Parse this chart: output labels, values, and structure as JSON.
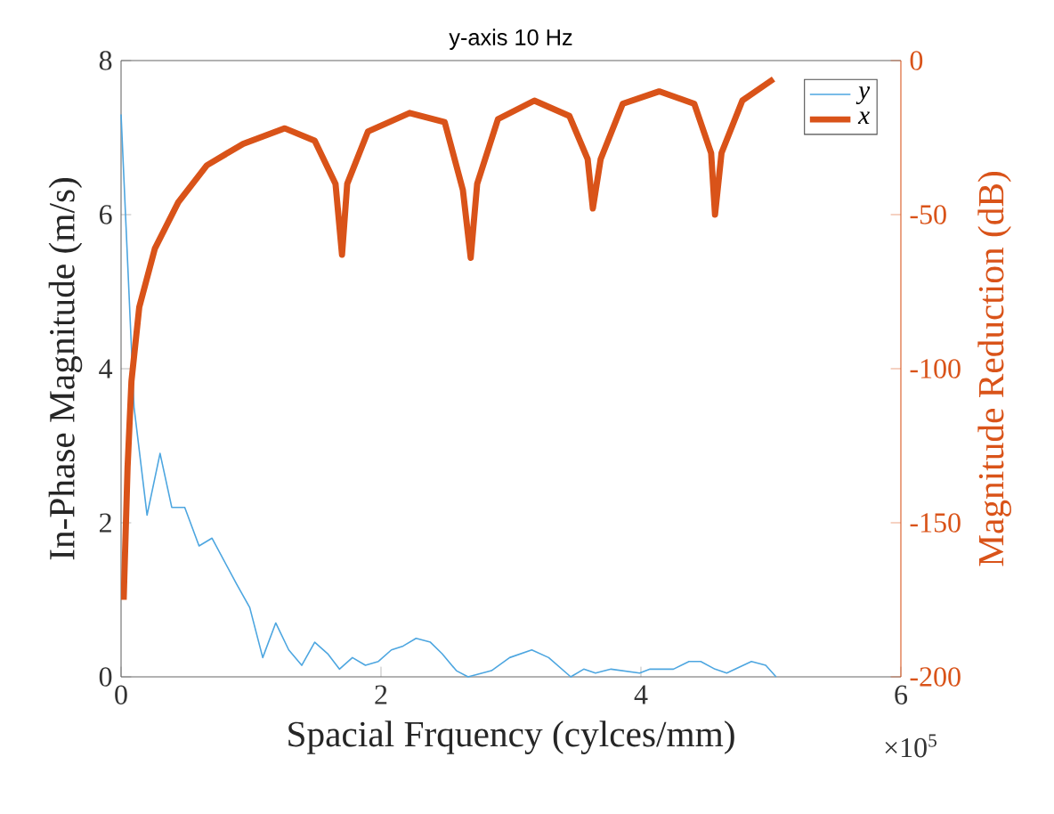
{
  "chart_data": {
    "type": "line",
    "title": "y-axis 10 Hz",
    "xlabel": "Spacial Frquency (cylces/mm)",
    "ylabel": "In-Phase Magnitude (m/s)",
    "y2label": "Magnitude Reduction (dB)",
    "annotations": [
      "×10$^{5}$"
    ],
    "xlim": [
      0,
      6
    ],
    "xticks": [
      0,
      2,
      4,
      6
    ],
    "ylim": [
      0,
      8
    ],
    "yticks": [
      0,
      2,
      4,
      6,
      8
    ],
    "y2lim": [
      -200,
      0
    ],
    "y2ticks": [
      -200,
      -150,
      -100,
      -50,
      0
    ],
    "legend": "top right",
    "series": [
      {
        "name": "y",
        "color": "#4da6e0",
        "x": [
          0,
          0.1,
          0.2,
          0.3,
          0.39,
          0.49,
          0.6,
          0.7,
          0.89,
          0.99,
          1.09,
          1.19,
          1.29,
          1.39,
          1.49,
          1.59,
          1.68,
          1.78,
          1.88,
          1.98,
          2.08,
          2.17,
          2.27,
          2.38,
          2.47,
          2.58,
          2.67,
          2.85,
          2.99,
          3.16,
          3.29,
          3.46,
          3.56,
          3.65,
          3.77,
          3.99,
          4.07,
          4.25,
          4.37,
          4.46,
          4.57,
          4.66,
          4.85,
          4.96,
          5.04
        ],
        "values": [
          7.3,
          3.5,
          2.1,
          2.9,
          2.2,
          2.2,
          1.7,
          1.8,
          1.2,
          0.9,
          0.25,
          0.7,
          0.35,
          0.15,
          0.45,
          0.3,
          0.1,
          0.25,
          0.15,
          0.2,
          0.35,
          0.4,
          0.5,
          0.45,
          0.3,
          0.08,
          0,
          0.08,
          0.25,
          0.35,
          0.25,
          0,
          0.1,
          0.05,
          0.1,
          0.05,
          0.1,
          0.1,
          0.2,
          0.2,
          0.1,
          0.05,
          0.2,
          0.15,
          0
        ]
      },
      {
        "name": "x",
        "color": "#d95319",
        "axis": "y2",
        "x": [
          0.02,
          0.05,
          0.08,
          0.14,
          0.26,
          0.44,
          0.66,
          0.94,
          1.26,
          1.49,
          1.65,
          1.7,
          1.74,
          1.9,
          2.22,
          2.49,
          2.63,
          2.69,
          2.74,
          2.9,
          3.18,
          3.45,
          3.59,
          3.63,
          3.69,
          3.86,
          4.14,
          4.41,
          4.54,
          4.57,
          4.62,
          4.78,
          5.02
        ],
        "values": [
          -175,
          -132,
          -104,
          -80,
          -61,
          -46,
          -34,
          -27,
          -22,
          -26,
          -40,
          -63,
          -40,
          -23,
          -17,
          -20,
          -42,
          -64,
          -40,
          -19,
          -13,
          -18,
          -32,
          -48,
          -32,
          -14,
          -10,
          -14,
          -30,
          -50,
          -30,
          -13,
          -6
        ]
      }
    ]
  }
}
